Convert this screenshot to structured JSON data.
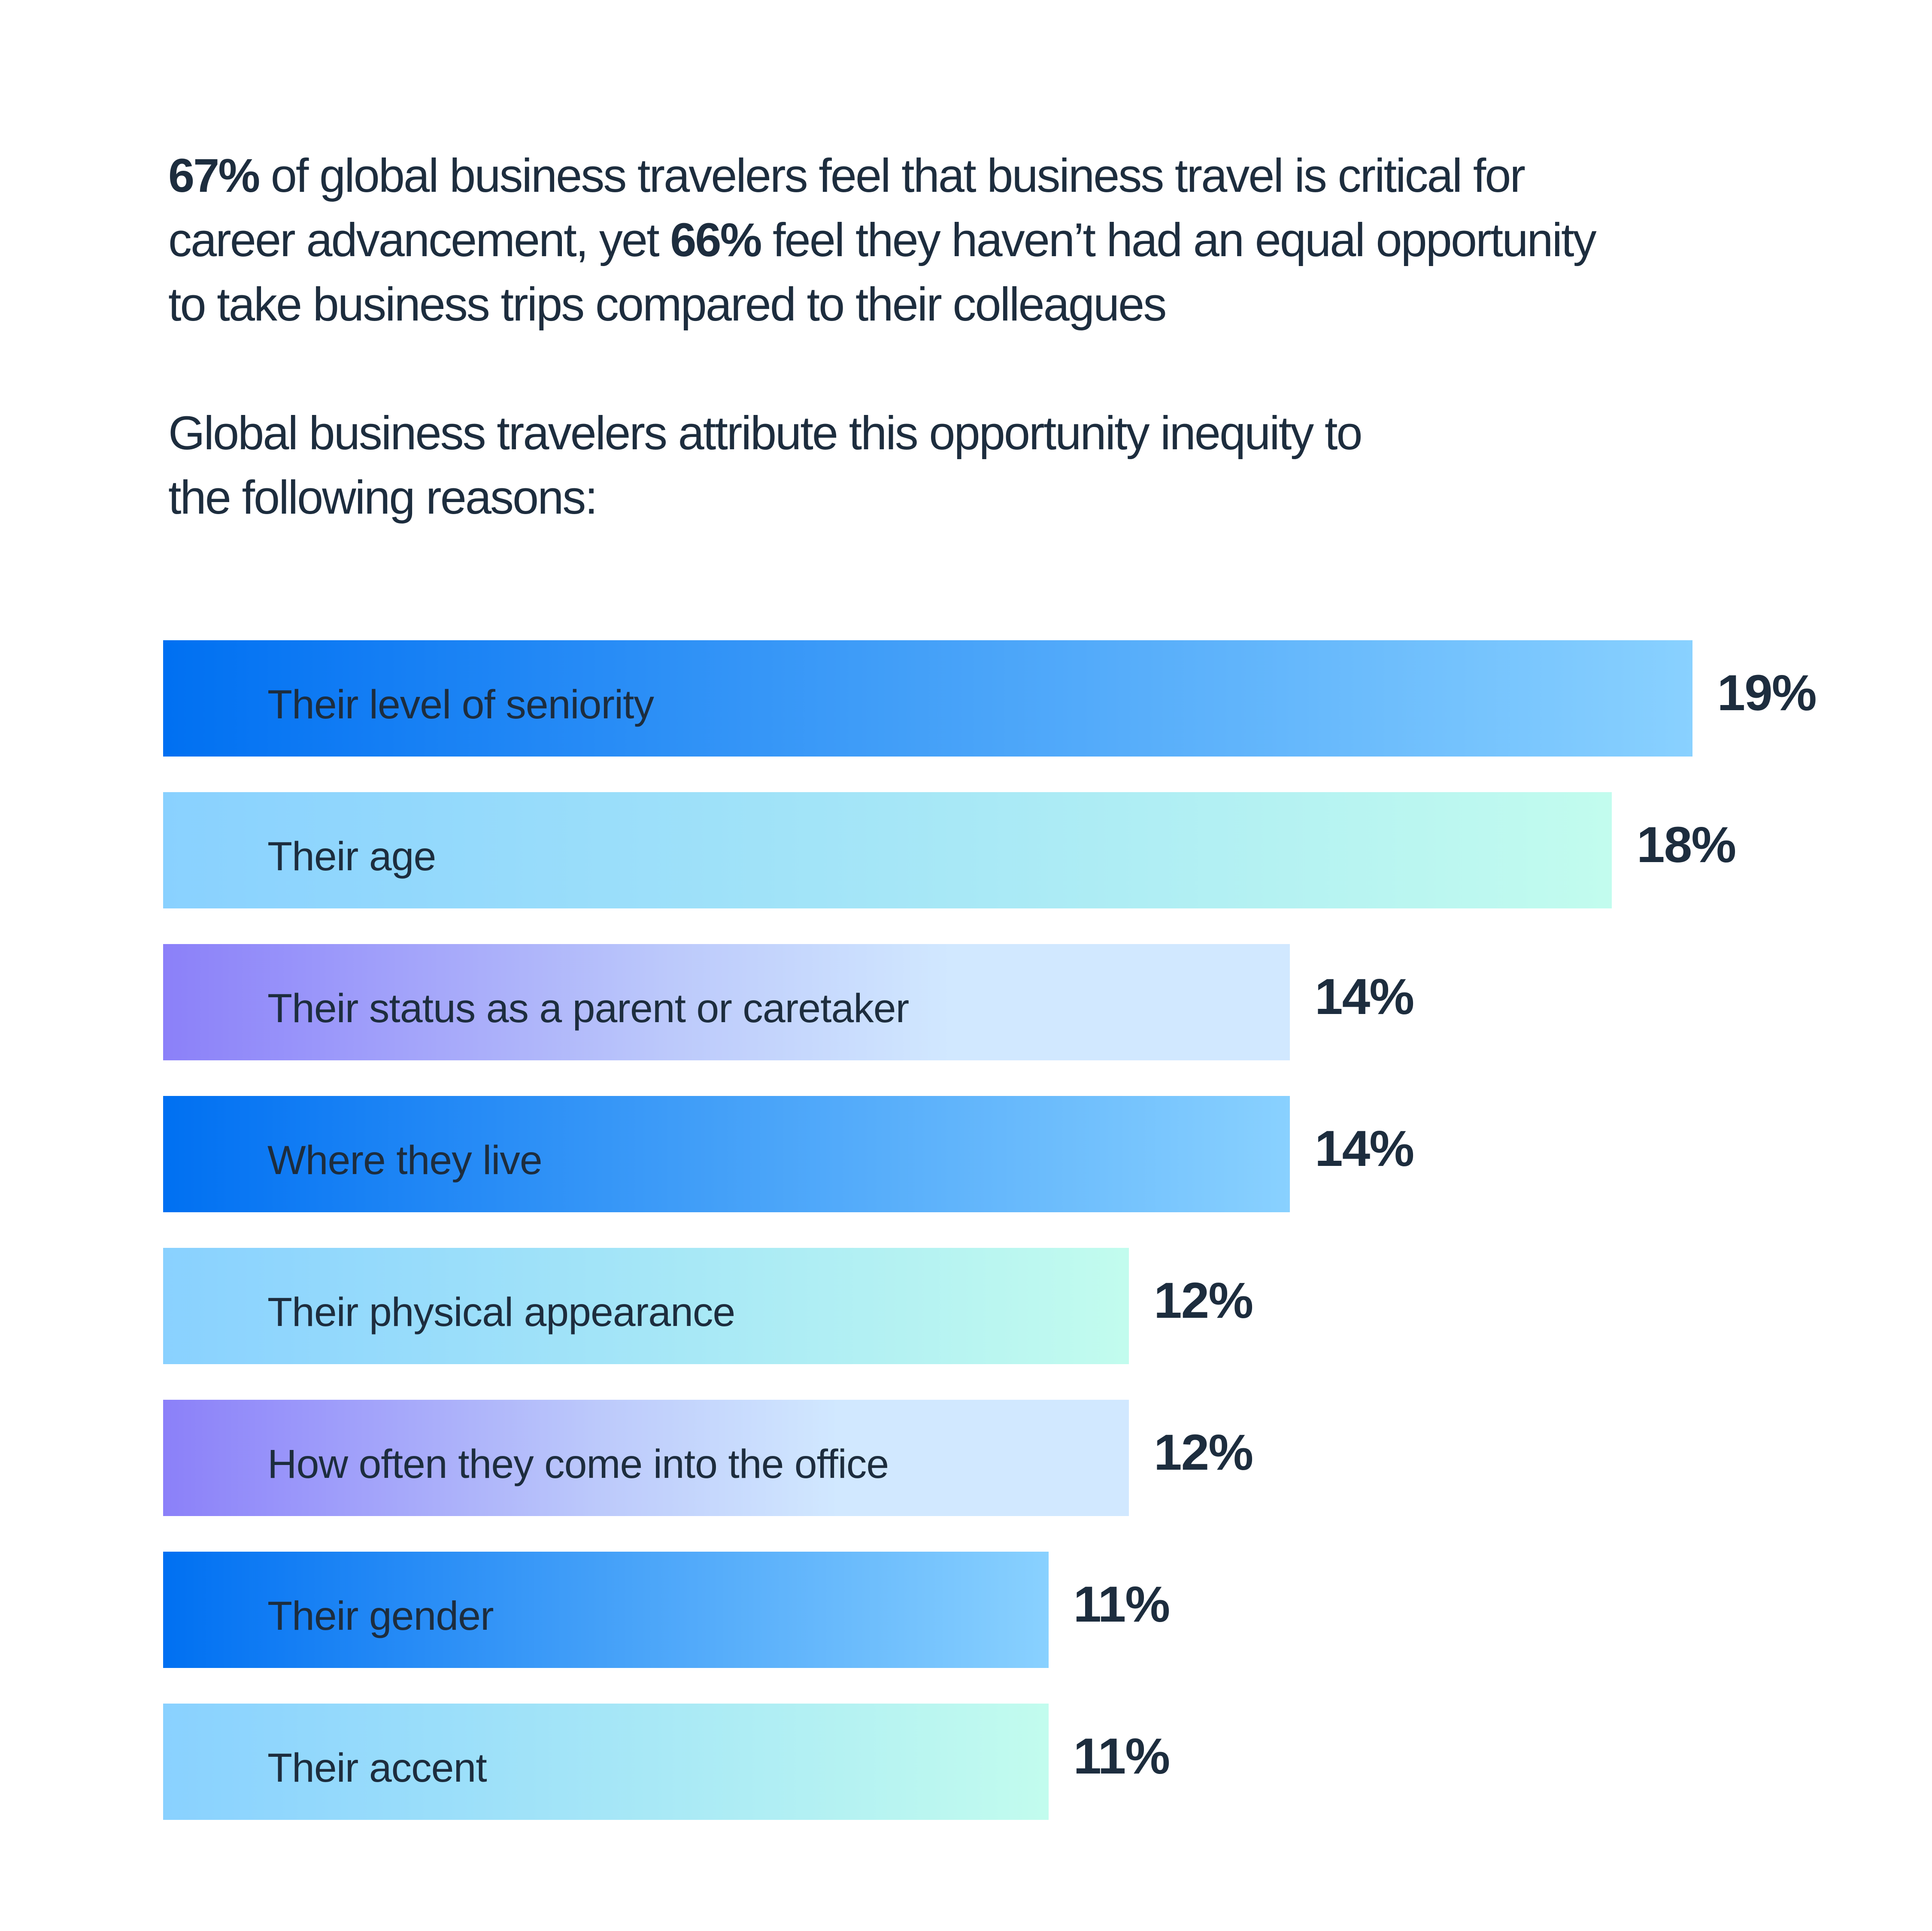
{
  "headline": {
    "lines": [
      [
        {
          "text": "67%",
          "bold": true
        },
        {
          "text": " of global business travelers feel that business travel is critical for",
          "bold": false
        }
      ],
      [
        {
          "text": "career advancement, yet ",
          "bold": false
        },
        {
          "text": "66%",
          "bold": true
        },
        {
          "text": " feel they haven’t had an equal opportunity",
          "bold": false
        }
      ],
      [
        {
          "text": "to take business trips compared to their colleagues",
          "bold": false
        }
      ]
    ]
  },
  "subhead": {
    "lines": [
      "Global business travelers attribute this opportunity inequity to",
      "the following reasons:"
    ]
  },
  "colors": {
    "text": "#1d2d3e",
    "blue_start": "#0070f2",
    "blue_end": "#89d1ff",
    "cyan_end": "#c2fcee",
    "purple_start": "#8b80f9",
    "purple_end": "#d1e8ff"
  },
  "chart_data": {
    "type": "bar",
    "orientation": "horizontal",
    "unit": "%",
    "categories": [
      "Their level of seniority",
      "Their age",
      "Their status as a parent or caretaker",
      "Where they live",
      "Their physical appearance",
      "How often they come into the office",
      "Their gender",
      "Their accent"
    ],
    "values": [
      19,
      18,
      14,
      14,
      12,
      12,
      11,
      11
    ],
    "value_labels": [
      "19%",
      "18%",
      "14%",
      "14%",
      "12%",
      "12%",
      "11%",
      "11%"
    ],
    "bar_styles": [
      "blue",
      "cyan",
      "purple",
      "blue",
      "cyan",
      "purple",
      "blue",
      "cyan"
    ],
    "grid": false,
    "axes_visible": false
  }
}
